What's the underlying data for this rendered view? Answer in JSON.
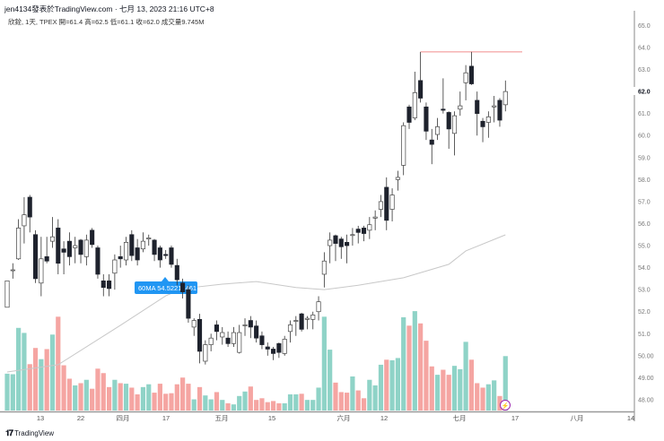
{
  "header": {
    "publisher_line": "jen4134發表於TradingView.com · 七月 13, 2023 21:16 UTC+8",
    "legend": "欣銓, 1天, TPEX  開=61.4  高=62.5  低=61.1  收=62.0  成交量9.745M"
  },
  "tooltip": {
    "label": "60MA 54.52217461"
  },
  "footer": {
    "brand": "TradingView",
    "logo_mark": "17"
  },
  "colors": {
    "up_volume": "#8fd3c7",
    "down_volume": "#f5a5a2",
    "candle_down": "#1e222d",
    "ma": "#c8c8c8",
    "high_line": "#f08c8c",
    "tooltip": "#2196f3",
    "alert": "#9c27b0"
  },
  "icons": {
    "alert": "lightning-icon",
    "logo": "tradingview-logo"
  },
  "chart_data": {
    "type": "candlestick",
    "symbol": "欣銓",
    "interval": "1天",
    "exchange": "TPEX",
    "y_ticks": [
      "65.0",
      "64.0",
      "63.0",
      "62.0",
      "61.0",
      "60.0",
      "59.0",
      "58.0",
      "57.0",
      "56.0",
      "55.0",
      "54.0",
      "53.0",
      "52.0",
      "51.0",
      "50.00",
      "49.00",
      "48.00"
    ],
    "current_price": "62.0",
    "x_ticks": [
      "13",
      "22",
      "四月",
      "17",
      "五月",
      "15",
      "六月",
      "12",
      "七月",
      "17",
      "八月",
      "14"
    ],
    "high_line": 63.8,
    "ohlc": [
      [
        52.2,
        53.4,
        52.2,
        53.4
      ],
      [
        53.9,
        54.2,
        53.5,
        53.9
      ],
      [
        54.4,
        56.2,
        54.35,
        55.8
      ],
      [
        55.9,
        57.2,
        55.1,
        56.4
      ],
      [
        57.2,
        57.3,
        55.6,
        56.3
      ],
      [
        55.5,
        55.7,
        53.3,
        53.5
      ],
      [
        53.3,
        55.4,
        52.7,
        54.4
      ],
      [
        54.5,
        55.4,
        54.2,
        54.3
      ],
      [
        55.2,
        56.3,
        54.9,
        55.4
      ],
      [
        55.8,
        56.2,
        53.7,
        54.2
      ],
      [
        54.85,
        55.2,
        53.7,
        54.7
      ],
      [
        55.2,
        55.6,
        54.1,
        54.5
      ],
      [
        54.9,
        55.4,
        54.2,
        55.0
      ],
      [
        55.25,
        55.3,
        54.2,
        54.6
      ],
      [
        54.5,
        55.5,
        54.1,
        55.25
      ],
      [
        55.7,
        55.8,
        54.9,
        55.05
      ],
      [
        54.9,
        55.0,
        53.5,
        53.7
      ],
      [
        53.4,
        53.7,
        52.7,
        53.1
      ],
      [
        53.4,
        53.7,
        52.7,
        53.05
      ],
      [
        53.75,
        54.6,
        53.0,
        54.35
      ],
      [
        54.5,
        55.0,
        54.0,
        54.4
      ],
      [
        54.35,
        55.4,
        54.1,
        55.15
      ],
      [
        55.5,
        55.7,
        54.3,
        54.55
      ],
      [
        54.9,
        55.3,
        54.1,
        54.35
      ],
      [
        54.85,
        55.6,
        54.7,
        55.2
      ],
      [
        55.3,
        55.5,
        55.0,
        55.35
      ],
      [
        55.25,
        55.3,
        54.3,
        54.6
      ],
      [
        54.9,
        55.0,
        54.0,
        54.35
      ],
      [
        54.6,
        54.8,
        54.4,
        54.55
      ],
      [
        54.9,
        55.0,
        54.0,
        54.15
      ],
      [
        54.1,
        54.4,
        53.2,
        53.45
      ],
      [
        53.3,
        53.5,
        52.6,
        52.9
      ],
      [
        53.0,
        53.2,
        51.5,
        51.7
      ],
      [
        51.3,
        51.7,
        50.9,
        51.6
      ],
      [
        51.65,
        51.9,
        49.65,
        50.2
      ],
      [
        49.75,
        50.7,
        49.6,
        50.5
      ],
      [
        50.5,
        51.0,
        50.2,
        50.8
      ],
      [
        51.4,
        51.6,
        50.7,
        51.1
      ],
      [
        50.85,
        51.3,
        50.5,
        51.05
      ],
      [
        50.8,
        51.1,
        50.4,
        50.55
      ],
      [
        50.55,
        51.3,
        50.4,
        51.05
      ],
      [
        50.15,
        51.4,
        50.1,
        51.05
      ],
      [
        51.4,
        51.7,
        50.9,
        51.4
      ],
      [
        51.6,
        51.8,
        50.8,
        51.3
      ],
      [
        51.35,
        51.6,
        50.6,
        50.8
      ],
      [
        50.9,
        51.1,
        50.3,
        50.5
      ],
      [
        50.4,
        50.6,
        50.0,
        50.3
      ],
      [
        50.3,
        50.4,
        49.8,
        50.1
      ],
      [
        50.55,
        50.6,
        49.9,
        50.15
      ],
      [
        50.1,
        50.9,
        50.0,
        50.75
      ],
      [
        51.1,
        51.6,
        50.6,
        51.4
      ],
      [
        51.6,
        51.8,
        50.9,
        51.6
      ],
      [
        51.9,
        51.95,
        51.1,
        51.2
      ],
      [
        51.65,
        51.8,
        51.2,
        51.7
      ],
      [
        51.65,
        52.0,
        51.2,
        51.85
      ],
      [
        52.0,
        52.7,
        51.6,
        52.45
      ],
      [
        53.7,
        54.7,
        53.1,
        54.3
      ],
      [
        55.0,
        55.6,
        54.2,
        55.25
      ],
      [
        55.45,
        55.5,
        54.3,
        55.1
      ],
      [
        55.3,
        55.4,
        54.4,
        54.95
      ],
      [
        55.15,
        55.5,
        54.2,
        55.0
      ],
      [
        55.5,
        55.8,
        55.0,
        55.5
      ],
      [
        55.75,
        55.9,
        55.1,
        55.6
      ],
      [
        55.8,
        55.9,
        55.2,
        55.55
      ],
      [
        55.7,
        56.3,
        55.3,
        55.95
      ],
      [
        56.25,
        56.6,
        55.7,
        56.3
      ],
      [
        56.65,
        57.3,
        56.3,
        57.0
      ],
      [
        57.65,
        58.1,
        55.7,
        56.15
      ],
      [
        56.65,
        57.6,
        56.1,
        57.3
      ],
      [
        58.0,
        58.4,
        57.5,
        58.1
      ],
      [
        58.65,
        60.6,
        58.2,
        60.45
      ],
      [
        61.3,
        61.4,
        60.3,
        60.6
      ],
      [
        60.8,
        62.9,
        60.7,
        61.95
      ],
      [
        62.5,
        63.8,
        61.5,
        61.7
      ],
      [
        61.3,
        61.5,
        59.8,
        60.2
      ],
      [
        59.8,
        60.3,
        58.7,
        59.6
      ],
      [
        60.05,
        60.8,
        59.8,
        60.4
      ],
      [
        61.2,
        62.6,
        61.0,
        61.15
      ],
      [
        61.05,
        61.1,
        59.4,
        60.3
      ],
      [
        60.1,
        61.1,
        59.1,
        60.9
      ],
      [
        61.2,
        62.0,
        60.9,
        61.35
      ],
      [
        62.4,
        63.2,
        61.6,
        62.85
      ],
      [
        63.15,
        63.8,
        62.3,
        62.35
      ],
      [
        61.6,
        62.0,
        60.0,
        61.0
      ],
      [
        60.65,
        60.8,
        59.7,
        60.4
      ],
      [
        60.6,
        61.1,
        59.9,
        60.85
      ],
      [
        61.3,
        61.8,
        60.6,
        61.35
      ],
      [
        61.6,
        61.7,
        60.4,
        60.7
      ],
      [
        61.4,
        62.5,
        61.1,
        62.0
      ]
    ],
    "volume_m": [
      6.6,
      6.5,
      14.8,
      13.9,
      8.3,
      11.2,
      9.2,
      11.0,
      13.6,
      16.8,
      8.1,
      5.7,
      4.5,
      4.9,
      5.5,
      3.9,
      7.5,
      6.7,
      4.2,
      5.5,
      4.9,
      4.8,
      4.1,
      2.9,
      4.2,
      4.7,
      3.2,
      4.8,
      3.0,
      3.1,
      4.7,
      5.9,
      4.8,
      2.0,
      4.2,
      2.7,
      2.0,
      3.3,
      1.9,
      1.3,
      1.1,
      2.6,
      3.4,
      4.3,
      1.9,
      2.2,
      1.5,
      1.7,
      1.3,
      1.3,
      2.9,
      2.9,
      3.0,
      1.9,
      1.9,
      4.1,
      16.8,
      10.9,
      5.0,
      3.3,
      3.2,
      6.1,
      3.6,
      2.2,
      5.5,
      4.5,
      8.2,
      9.1,
      9.0,
      9.4,
      16.7,
      15.2,
      17.8,
      15.6,
      12.5,
      7.9,
      6.4,
      7.3,
      6.4,
      8.0,
      7.4,
      12.3,
      9.1,
      4.9,
      4.1,
      4.7,
      5.4,
      2.6,
      9.745
    ],
    "ma60": [
      [
        0,
        49.26
      ],
      [
        9,
        49.59
      ],
      [
        20,
        51.38
      ],
      [
        28,
        52.72
      ],
      [
        31,
        53.05
      ],
      [
        38,
        53.25
      ],
      [
        44,
        53.37
      ],
      [
        51,
        53.1
      ],
      [
        56,
        53.0
      ],
      [
        62,
        53.2
      ],
      [
        70,
        53.54
      ],
      [
        78,
        54.15
      ],
      [
        81,
        54.76
      ],
      [
        88,
        55.49
      ]
    ]
  }
}
